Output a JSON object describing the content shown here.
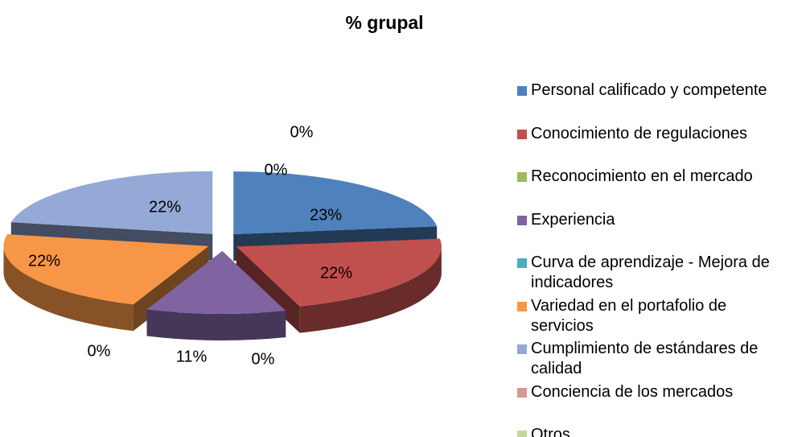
{
  "chart_data": {
    "type": "pie3d",
    "title": "% grupal",
    "categories": [
      "Personal calificado y competente",
      "Conocimiento de regulaciones",
      "Reconocimiento en el mercado",
      "Experiencia",
      "Curva de aprendizaje - Mejora de indicadores",
      "Variedad en el portafolio de servicios",
      "Cumplimiento de estándares de calidad",
      "Conciencia de los mercados",
      "Otros"
    ],
    "values": [
      23,
      22,
      0,
      11,
      0,
      22,
      22,
      0,
      0
    ],
    "value_labels": [
      "23%",
      "22%",
      "0%",
      "11%",
      "0%",
      "22%",
      "22%",
      "0%",
      "0%"
    ],
    "colors": [
      "#4f81bd",
      "#c0504d",
      "#9bbb59",
      "#8064a2",
      "#4bacc6",
      "#f79646",
      "#95a9d6",
      "#d99694",
      "#c3d69b"
    ],
    "legend": "right"
  }
}
